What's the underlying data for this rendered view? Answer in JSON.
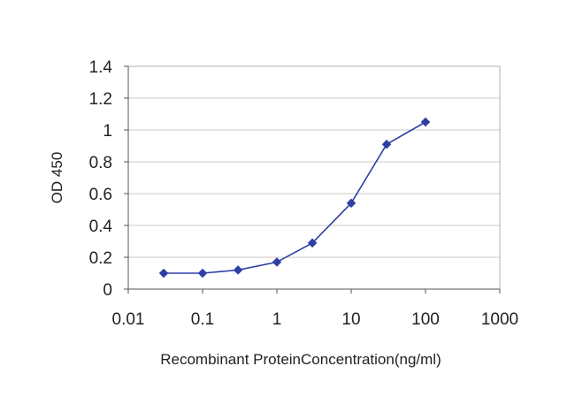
{
  "chart_data": {
    "type": "scatter",
    "title": "",
    "xlabel": "Recombinant ProteinConcentration(ng/ml)",
    "ylabel": "OD 450",
    "x_scale": "log",
    "xlim": [
      0.01,
      1000
    ],
    "ylim": [
      0,
      1.4
    ],
    "x_ticks": [
      "0.01",
      "0.1",
      "1",
      "10",
      "100",
      "1000"
    ],
    "y_ticks": [
      "0",
      "0.2",
      "0.4",
      "0.6",
      "0.8",
      "1",
      "1.2",
      "1.4"
    ],
    "grid": "horizontal",
    "legend": "none",
    "series": [
      {
        "x": [
          0.03,
          0.1,
          0.3,
          1,
          3,
          10,
          30,
          100
        ],
        "y": [
          0.1,
          0.1,
          0.12,
          0.17,
          0.29,
          0.54,
          0.91,
          1.05
        ],
        "color": "#2e3fa3",
        "marker": "diamond",
        "line": "straight"
      }
    ]
  }
}
